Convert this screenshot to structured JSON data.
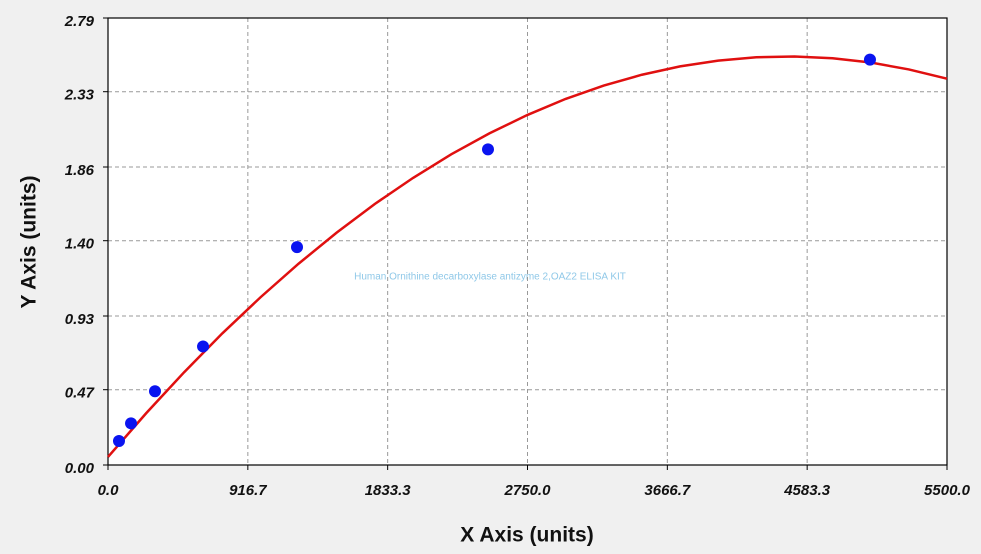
{
  "chart_data": {
    "type": "scatter",
    "x_label": "X Axis (units)",
    "y_label": "Y Axis (units)",
    "annotation": "Human Ornithine decarboxylase antizyme 2,OAZ2 ELISA KIT",
    "xlim": [
      0,
      5500
    ],
    "ylim": [
      0,
      2.79
    ],
    "xticks": [
      {
        "value": 0,
        "label": "0.0"
      },
      916.7,
      1833.3,
      {
        "value": 2750,
        "label": "2750.0"
      },
      3666.7,
      4583.3,
      {
        "value": 5500,
        "label": "5500.0"
      }
    ],
    "yticks": [
      {
        "value": 0,
        "label": "0.00"
      },
      0.47,
      0.93,
      {
        "value": 1.4,
        "label": "1.40"
      },
      1.86,
      2.33,
      2.79
    ],
    "grid": true,
    "points": {
      "color": "#0a14f0",
      "x": [
        72,
        151,
        308,
        623,
        1239,
        2491,
        4995
      ],
      "y": [
        0.15,
        0.26,
        0.46,
        0.74,
        1.36,
        1.97,
        2.53
      ]
    },
    "curve": {
      "color": "#e01010",
      "x": [
        0,
        250,
        500,
        750,
        1000,
        1250,
        1500,
        1750,
        2000,
        2250,
        2500,
        2750,
        3000,
        3250,
        3500,
        3750,
        4000,
        4250,
        4500,
        4750,
        5000,
        5250,
        5500
      ],
      "y": [
        0.05,
        0.323,
        0.58,
        0.822,
        1.047,
        1.257,
        1.451,
        1.63,
        1.792,
        1.939,
        2.07,
        2.185,
        2.285,
        2.368,
        2.436,
        2.488,
        2.524,
        2.545,
        2.55,
        2.539,
        2.512,
        2.469,
        2.411
      ]
    }
  }
}
